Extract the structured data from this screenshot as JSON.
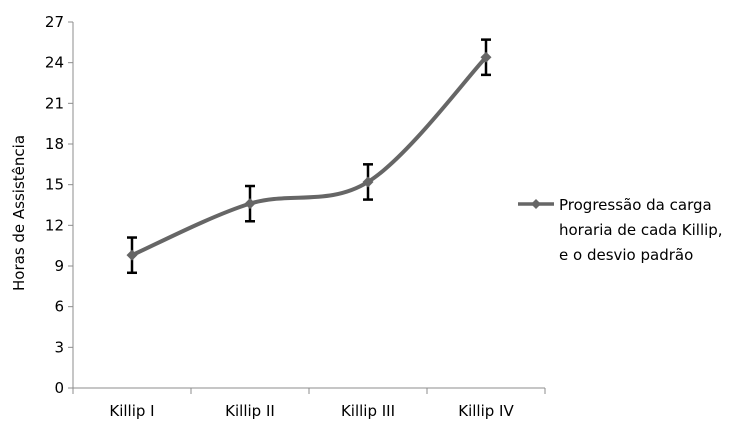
{
  "chart_data": {
    "type": "line",
    "title": "",
    "xlabel": "",
    "ylabel": "Horas de Assistência",
    "ylim": [
      0,
      27
    ],
    "y_ticks": [
      "0",
      "3",
      "6",
      "9",
      "12",
      "15",
      "18",
      "21",
      "24",
      "27"
    ],
    "categories": [
      "Killip I",
      "Killip II",
      "Killip III",
      "Killip IV"
    ],
    "grid": false,
    "legend_position": "right",
    "line_style": "smooth",
    "marker": "diamond",
    "series_color": "#666666",
    "series": [
      {
        "name": "Progressão da carga horaria de cada Killip, e o desvio padrão",
        "legend_lines": [
          "Progressão da carga",
          "horaria de cada Killip,",
          "e o desvio padrão"
        ],
        "values": [
          9.8,
          13.6,
          15.2,
          24.4
        ],
        "error": [
          1.3,
          1.3,
          1.3,
          1.3
        ]
      }
    ]
  }
}
